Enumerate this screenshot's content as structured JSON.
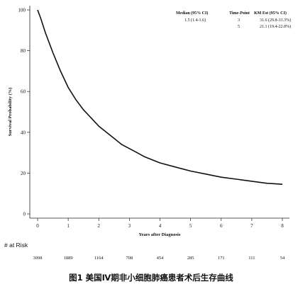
{
  "chart_data": {
    "type": "line",
    "xlabel": "Years after Diagnosis",
    "ylabel": "Survival Probability (%)",
    "xlim": [
      0,
      8
    ],
    "ylim": [
      0,
      100
    ],
    "x_ticks": [
      "0",
      "1",
      "2",
      "3",
      "4",
      "5",
      "6",
      "7",
      "8"
    ],
    "y_ticks": [
      "0",
      "20",
      "40",
      "60",
      "80",
      "100"
    ],
    "grid": false,
    "series": [
      {
        "x": [
          0,
          0.1,
          0.25,
          0.5,
          0.75,
          1,
          1.25,
          1.5,
          1.75,
          2,
          2.25,
          2.5,
          2.75,
          3,
          3.25,
          3.5,
          3.75,
          4,
          4.5,
          5,
          5.5,
          6,
          6.5,
          7,
          7.5,
          8
        ],
        "y": [
          100,
          96,
          89,
          79,
          70,
          62,
          56,
          51,
          47,
          43,
          40,
          37,
          34,
          32,
          30,
          28,
          26.5,
          25,
          23,
          21,
          19.5,
          18,
          17,
          16,
          15,
          14.5
        ]
      }
    ],
    "legend": {
      "position": "top-right",
      "headers": [
        "Median (95% CI)",
        "Time-Point",
        "KM Est (95% CI)"
      ],
      "median": "1.5 (1.4-1.6)",
      "rows": [
        {
          "time": "3",
          "est": "31.6 (29.8-33.3%)"
        },
        {
          "time": "5",
          "est": "21.1 (19.4-22.8%)"
        }
      ]
    }
  },
  "risk_table": {
    "title": "# at Risk",
    "values": [
      "3098",
      "1889",
      "1164",
      "708",
      "454",
      "285",
      "171",
      "111",
      "54"
    ]
  },
  "caption": "图1 美国Ⅳ期非小细胞肺癌患者术后生存曲线",
  "colors": {
    "curve": "#111111",
    "axis": "#222222",
    "text": "#111111"
  }
}
